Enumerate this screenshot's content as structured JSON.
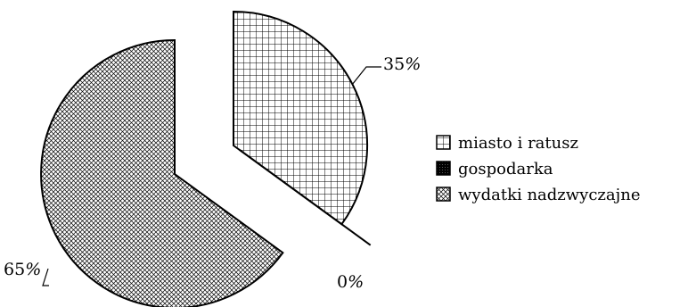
{
  "chart_data": {
    "type": "pie",
    "title": "",
    "exploded": true,
    "legend_position": "right",
    "slices": [
      {
        "label": "miasto i ratusz",
        "value": 35,
        "value_label": "35%",
        "pattern": "grid-hatch",
        "color": "#000000"
      },
      {
        "label": "gospodarka",
        "value": 0,
        "value_label": "0%",
        "pattern": "solid-dots",
        "color": "#000000"
      },
      {
        "label": "wydatki nadzwyczajne",
        "value": 65,
        "value_label": "65%",
        "pattern": "crosshatch-fine",
        "color": "#000000"
      }
    ]
  }
}
